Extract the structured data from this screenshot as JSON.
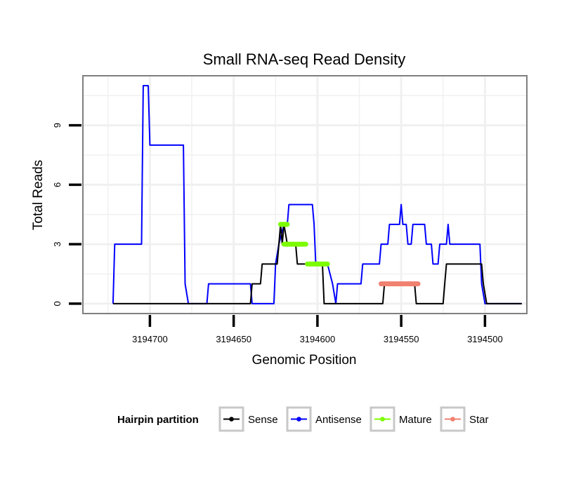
{
  "chart_data": {
    "type": "line",
    "title": "Small RNA-seq Read Density",
    "xlabel": "Genomic Position",
    "ylabel": "Total Reads",
    "x_reversed": true,
    "xlim": [
      3194475,
      3194740
    ],
    "ylim": [
      -0.5,
      11.5
    ],
    "xticks": [
      3194700,
      3194650,
      3194600,
      3194550,
      3194500
    ],
    "xtick_labels": [
      "3194700",
      "3194650",
      "3194600",
      "3194550",
      "3194500"
    ],
    "yticks": [
      0,
      3,
      6,
      9
    ],
    "ytick_labels": [
      "0",
      "3",
      "6",
      "9"
    ],
    "grid": true,
    "legend": {
      "title": "Hairpin partition",
      "position": "bottom",
      "items": [
        {
          "label": "Sense",
          "color": "#000000"
        },
        {
          "label": "Antisense",
          "color": "#0000ff"
        },
        {
          "label": "Mature",
          "color": "#7cfc00"
        },
        {
          "label": "Star",
          "color": "#f08070"
        }
      ]
    },
    "series": [
      {
        "name": "Antisense",
        "color": "#0000ff",
        "points": [
          [
            3194722,
            0
          ],
          [
            3194721,
            3
          ],
          [
            3194705,
            3
          ],
          [
            3194704,
            11
          ],
          [
            3194701,
            11
          ],
          [
            3194700,
            8
          ],
          [
            3194680,
            8
          ],
          [
            3194679,
            1
          ],
          [
            3194677,
            0
          ],
          [
            3194666,
            0
          ],
          [
            3194665,
            1
          ],
          [
            3194640,
            1
          ],
          [
            3194639,
            0
          ],
          [
            3194626,
            0
          ],
          [
            3194625,
            2
          ],
          [
            3194623,
            3
          ],
          [
            3194620,
            4
          ],
          [
            3194618,
            4
          ],
          [
            3194617,
            5
          ],
          [
            3194603,
            5
          ],
          [
            3194602,
            4
          ],
          [
            3194601,
            2
          ],
          [
            3194595,
            2
          ],
          [
            3194594,
            2
          ],
          [
            3194591,
            1
          ],
          [
            3194589,
            0
          ],
          [
            3194588,
            1
          ],
          [
            3194585,
            1
          ],
          [
            3194574,
            1
          ],
          [
            3194573,
            2
          ],
          [
            3194563,
            2
          ],
          [
            3194562,
            3
          ],
          [
            3194558,
            3
          ],
          [
            3194557,
            4
          ],
          [
            3194551,
            4
          ],
          [
            3194550,
            5
          ],
          [
            3194549,
            4
          ],
          [
            3194547,
            4
          ],
          [
            3194546,
            3
          ],
          [
            3194544,
            3
          ],
          [
            3194543,
            4
          ],
          [
            3194536,
            4
          ],
          [
            3194535,
            3
          ],
          [
            3194532,
            3
          ],
          [
            3194531,
            2
          ],
          [
            3194528,
            2
          ],
          [
            3194527,
            3
          ],
          [
            3194523,
            3
          ],
          [
            3194522,
            4
          ],
          [
            3194521,
            3
          ],
          [
            3194503,
            3
          ],
          [
            3194502,
            1
          ],
          [
            3194500,
            0
          ],
          [
            3194478,
            0
          ]
        ]
      },
      {
        "name": "Sense",
        "color": "#000000",
        "points": [
          [
            3194722,
            0
          ],
          [
            3194640,
            0
          ],
          [
            3194639,
            1
          ],
          [
            3194634,
            1
          ],
          [
            3194633,
            2
          ],
          [
            3194624,
            2
          ],
          [
            3194623,
            3
          ],
          [
            3194622,
            4
          ],
          [
            3194621,
            3
          ],
          [
            3194620,
            4
          ],
          [
            3194618,
            3
          ],
          [
            3194613,
            3
          ],
          [
            3194612,
            2
          ],
          [
            3194597,
            2
          ],
          [
            3194596,
            0
          ],
          [
            3194561,
            0
          ],
          [
            3194560,
            1
          ],
          [
            3194542,
            1
          ],
          [
            3194541,
            0
          ],
          [
            3194525,
            0
          ],
          [
            3194524,
            1
          ],
          [
            3194523,
            2
          ],
          [
            3194502,
            2
          ],
          [
            3194501,
            1
          ],
          [
            3194499,
            0
          ],
          [
            3194478,
            0
          ]
        ]
      }
    ],
    "segments": [
      {
        "name": "Mature",
        "color": "#7cfc00",
        "y": 4,
        "x_start": 3194622,
        "x_end": 3194618
      },
      {
        "name": "Mature",
        "color": "#7cfc00",
        "y": 3,
        "x_start": 3194620,
        "x_end": 3194607
      },
      {
        "name": "Mature",
        "color": "#7cfc00",
        "y": 2,
        "x_start": 3194606,
        "x_end": 3194594
      },
      {
        "name": "Star",
        "color": "#f08070",
        "y": 1,
        "x_start": 3194562,
        "x_end": 3194540
      }
    ]
  }
}
